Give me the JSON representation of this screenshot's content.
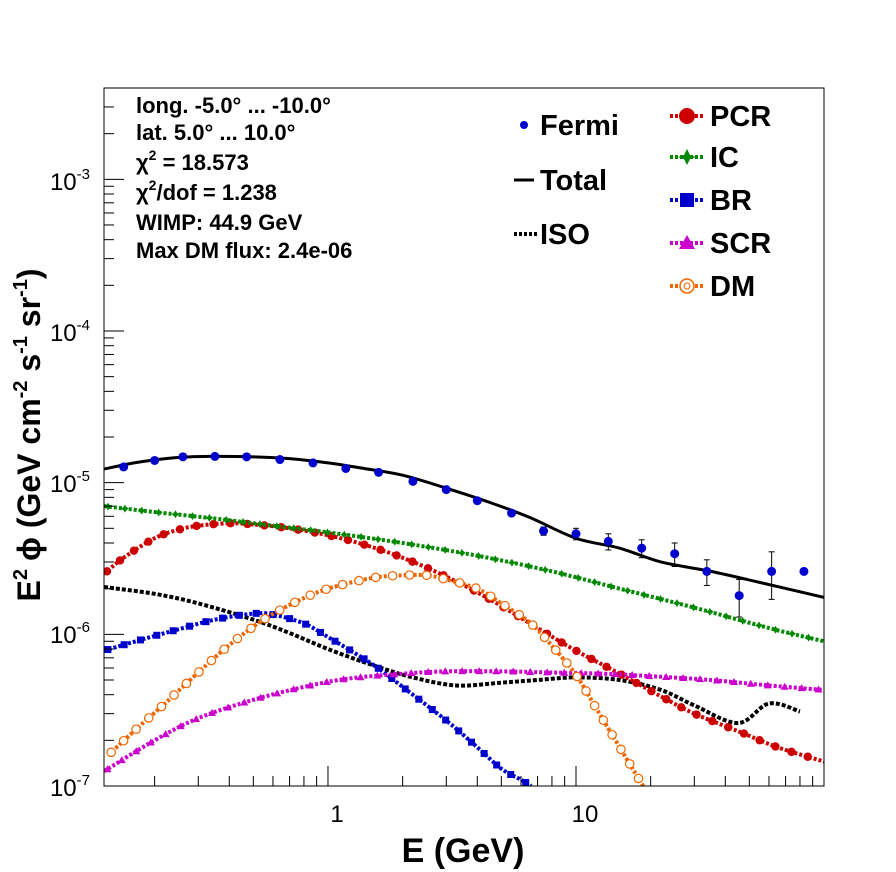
{
  "chart_data": {
    "type": "line",
    "log_x": true,
    "log_y": true,
    "xlim": [
      0.125,
      100
    ],
    "ylim": [
      1e-07,
      0.004
    ],
    "xlabel": "E (GeV)",
    "ylabel_parts": {
      "a": "E",
      "b": "2",
      "c": "ϕ (GeV cm",
      "d": "-2",
      "e": " s",
      "f": "-1",
      "g": " sr",
      "h": "-1",
      "i": ")"
    },
    "x_tick_labels": [
      "1",
      "10"
    ],
    "y_tick_labels": [
      {
        "base": "10",
        "exp": "-7"
      },
      {
        "base": "10",
        "exp": "-6"
      },
      {
        "base": "10",
        "exp": "-5"
      },
      {
        "base": "10",
        "exp": "-4"
      },
      {
        "base": "10",
        "exp": "-3"
      }
    ],
    "annotations": [
      {
        "pre": "long. -5.0° ... -10.0°",
        "sup": "",
        "post": ""
      },
      {
        "pre": "lat. 5.0° ... 10.0°",
        "sup": "",
        "post": ""
      },
      {
        "pre": "χ",
        "sup": "2",
        "post": " = 18.573"
      },
      {
        "pre": "χ",
        "sup": "2",
        "post": "/dof = 1.238"
      },
      {
        "pre": "WIMP: 44.9 GeV",
        "sup": "",
        "post": ""
      },
      {
        "pre": "Max DM flux: 2.4e-06",
        "sup": "",
        "post": ""
      }
    ],
    "legend_left": [
      "Fermi",
      "Total",
      "ISO"
    ],
    "legend_right": [
      "PCR",
      "IC",
      "BR",
      "SCR",
      "DM"
    ],
    "legend_placement": "top-right",
    "colors": {
      "Fermi": "#0000cc",
      "Total": "#000000",
      "ISO": "#000000",
      "PCR": "#cc0000",
      "IC": "#008800",
      "BR": "#0000cc",
      "SCR": "#cc00cc",
      "DM": "#ee6600"
    },
    "fermi": {
      "x": [
        0.15,
        0.2,
        0.26,
        0.35,
        0.47,
        0.64,
        0.87,
        1.18,
        1.6,
        2.2,
        3.0,
        4.0,
        5.5,
        7.4,
        10.0,
        13.5,
        18.4,
        25.0,
        33.7,
        45.5,
        61.5,
        83.0
      ],
      "y": [
        1.27e-05,
        1.4e-05,
        1.48e-05,
        1.49e-05,
        1.48e-05,
        1.42e-05,
        1.35e-05,
        1.24e-05,
        1.17e-05,
        1.02e-05,
        9e-06,
        7.6e-06,
        6.3e-06,
        4.8e-06,
        4.6e-06,
        4.1e-06,
        3.7e-06,
        3.4e-06,
        2.6e-06,
        1.8e-06,
        2.6e-06,
        2.6e-06
      ],
      "err": [
        0,
        0,
        0,
        0,
        0,
        0,
        0,
        0,
        0,
        0,
        0,
        0,
        0,
        3e-07,
        4e-07,
        5e-07,
        5e-07,
        6e-07,
        5e-07,
        5e-07,
        9e-07,
        0
      ]
    },
    "series": [
      {
        "name": "Total",
        "x": [
          0.125,
          0.17,
          0.24,
          0.33,
          0.5,
          0.7,
          1.0,
          1.4,
          2.0,
          3.0,
          4.5,
          6.5,
          10.0,
          15.0,
          22.0,
          35.0,
          55.0,
          100.0
        ],
        "y": [
          1.23e-05,
          1.36e-05,
          1.46e-05,
          1.49e-05,
          1.48e-05,
          1.44e-05,
          1.35e-05,
          1.24e-05,
          1.12e-05,
          9.2e-06,
          7.4e-06,
          5.9e-06,
          4.3e-06,
          3.7e-06,
          3e-06,
          2.6e-06,
          2.2e-06,
          1.75e-06
        ]
      },
      {
        "name": "ISO",
        "x": [
          0.125,
          0.2,
          0.3,
          0.5,
          0.7,
          1.0,
          1.5,
          2.2,
          3.3,
          5.0,
          7.0,
          10.0,
          15.0,
          22.0,
          30.0,
          45.0,
          60.0,
          80.0
        ],
        "y": [
          2.05e-06,
          1.85e-06,
          1.6e-06,
          1.25e-06,
          1.02e-06,
          8e-07,
          6.3e-07,
          5.2e-07,
          4.6e-07,
          4.8e-07,
          5e-07,
          5.2e-07,
          5e-07,
          4.3e-07,
          3.4e-07,
          2.6e-07,
          3.5e-07,
          3.1e-07
        ]
      },
      {
        "name": "PCR",
        "x": [
          0.125,
          0.15,
          0.2,
          0.25,
          0.3,
          0.4,
          0.5,
          0.7,
          1.0,
          1.4,
          2.0,
          3.0,
          4.5,
          7.0,
          10.0,
          15.0,
          22.0,
          30.0,
          45.0,
          65.0,
          100.0
        ],
        "y": [
          2.5e-06,
          3.2e-06,
          4.3e-06,
          4.9e-06,
          5.2e-06,
          5.4e-06,
          5.3e-06,
          5e-06,
          4.5e-06,
          3.9e-06,
          3.2e-06,
          2.4e-06,
          1.7e-06,
          1.1e-06,
          7.8e-07,
          5.5e-07,
          3.9e-07,
          3e-07,
          2.3e-07,
          1.8e-07,
          1.45e-07
        ]
      },
      {
        "name": "IC",
        "x": [
          0.125,
          0.2,
          0.35,
          0.6,
          1.0,
          2.0,
          4.0,
          8.0,
          15.0,
          30.0,
          60.0,
          100.0
        ],
        "y": [
          7e-06,
          6.4e-06,
          5.8e-06,
          5.2e-06,
          4.7e-06,
          4e-06,
          3.3e-06,
          2.6e-06,
          2e-06,
          1.5e-06,
          1.1e-06,
          9e-07
        ]
      },
      {
        "name": "BR",
        "x": [
          0.125,
          0.18,
          0.25,
          0.35,
          0.5,
          0.6,
          0.8,
          1.0,
          1.5,
          2.0,
          3.0,
          4.0,
          5.0,
          6.0,
          6.6
        ],
        "y": [
          7.8e-07,
          9.3e-07,
          1.08e-06,
          1.25e-06,
          1.37e-06,
          1.35e-06,
          1.18e-06,
          9.6e-07,
          6.4e-07,
          4.5e-07,
          2.7e-07,
          1.8e-07,
          1.3e-07,
          1.1e-07,
          1e-07
        ]
      },
      {
        "name": "SCR",
        "x": [
          0.125,
          0.2,
          0.3,
          0.5,
          0.8,
          1.2,
          2.0,
          3.0,
          5.0,
          8.0,
          13.0,
          20.0,
          35.0,
          60.0,
          100.0
        ],
        "y": [
          1.25e-07,
          2e-07,
          2.8e-07,
          3.7e-07,
          4.5e-07,
          5.1e-07,
          5.5e-07,
          5.7e-07,
          5.7e-07,
          5.6e-07,
          5.5e-07,
          5.3e-07,
          5e-07,
          4.6e-07,
          4.3e-07
        ]
      },
      {
        "name": "DM",
        "x": [
          0.13,
          0.17,
          0.22,
          0.3,
          0.4,
          0.55,
          0.75,
          1.0,
          1.5,
          2.0,
          2.5,
          3.0,
          4.0,
          5.0,
          6.5,
          8.0,
          10.0,
          12.0,
          15.0,
          18.0,
          19.5
        ],
        "y": [
          1.6e-07,
          2.4e-07,
          3.5e-07,
          5.6e-07,
          8.5e-07,
          1.25e-06,
          1.65e-06,
          2e-06,
          2.35e-06,
          2.45e-06,
          2.45e-06,
          2.3e-06,
          2e-06,
          1.6e-06,
          1.2e-06,
          8.4e-07,
          5.4e-07,
          3.3e-07,
          1.8e-07,
          1.1e-07,
          9e-08
        ]
      }
    ]
  }
}
